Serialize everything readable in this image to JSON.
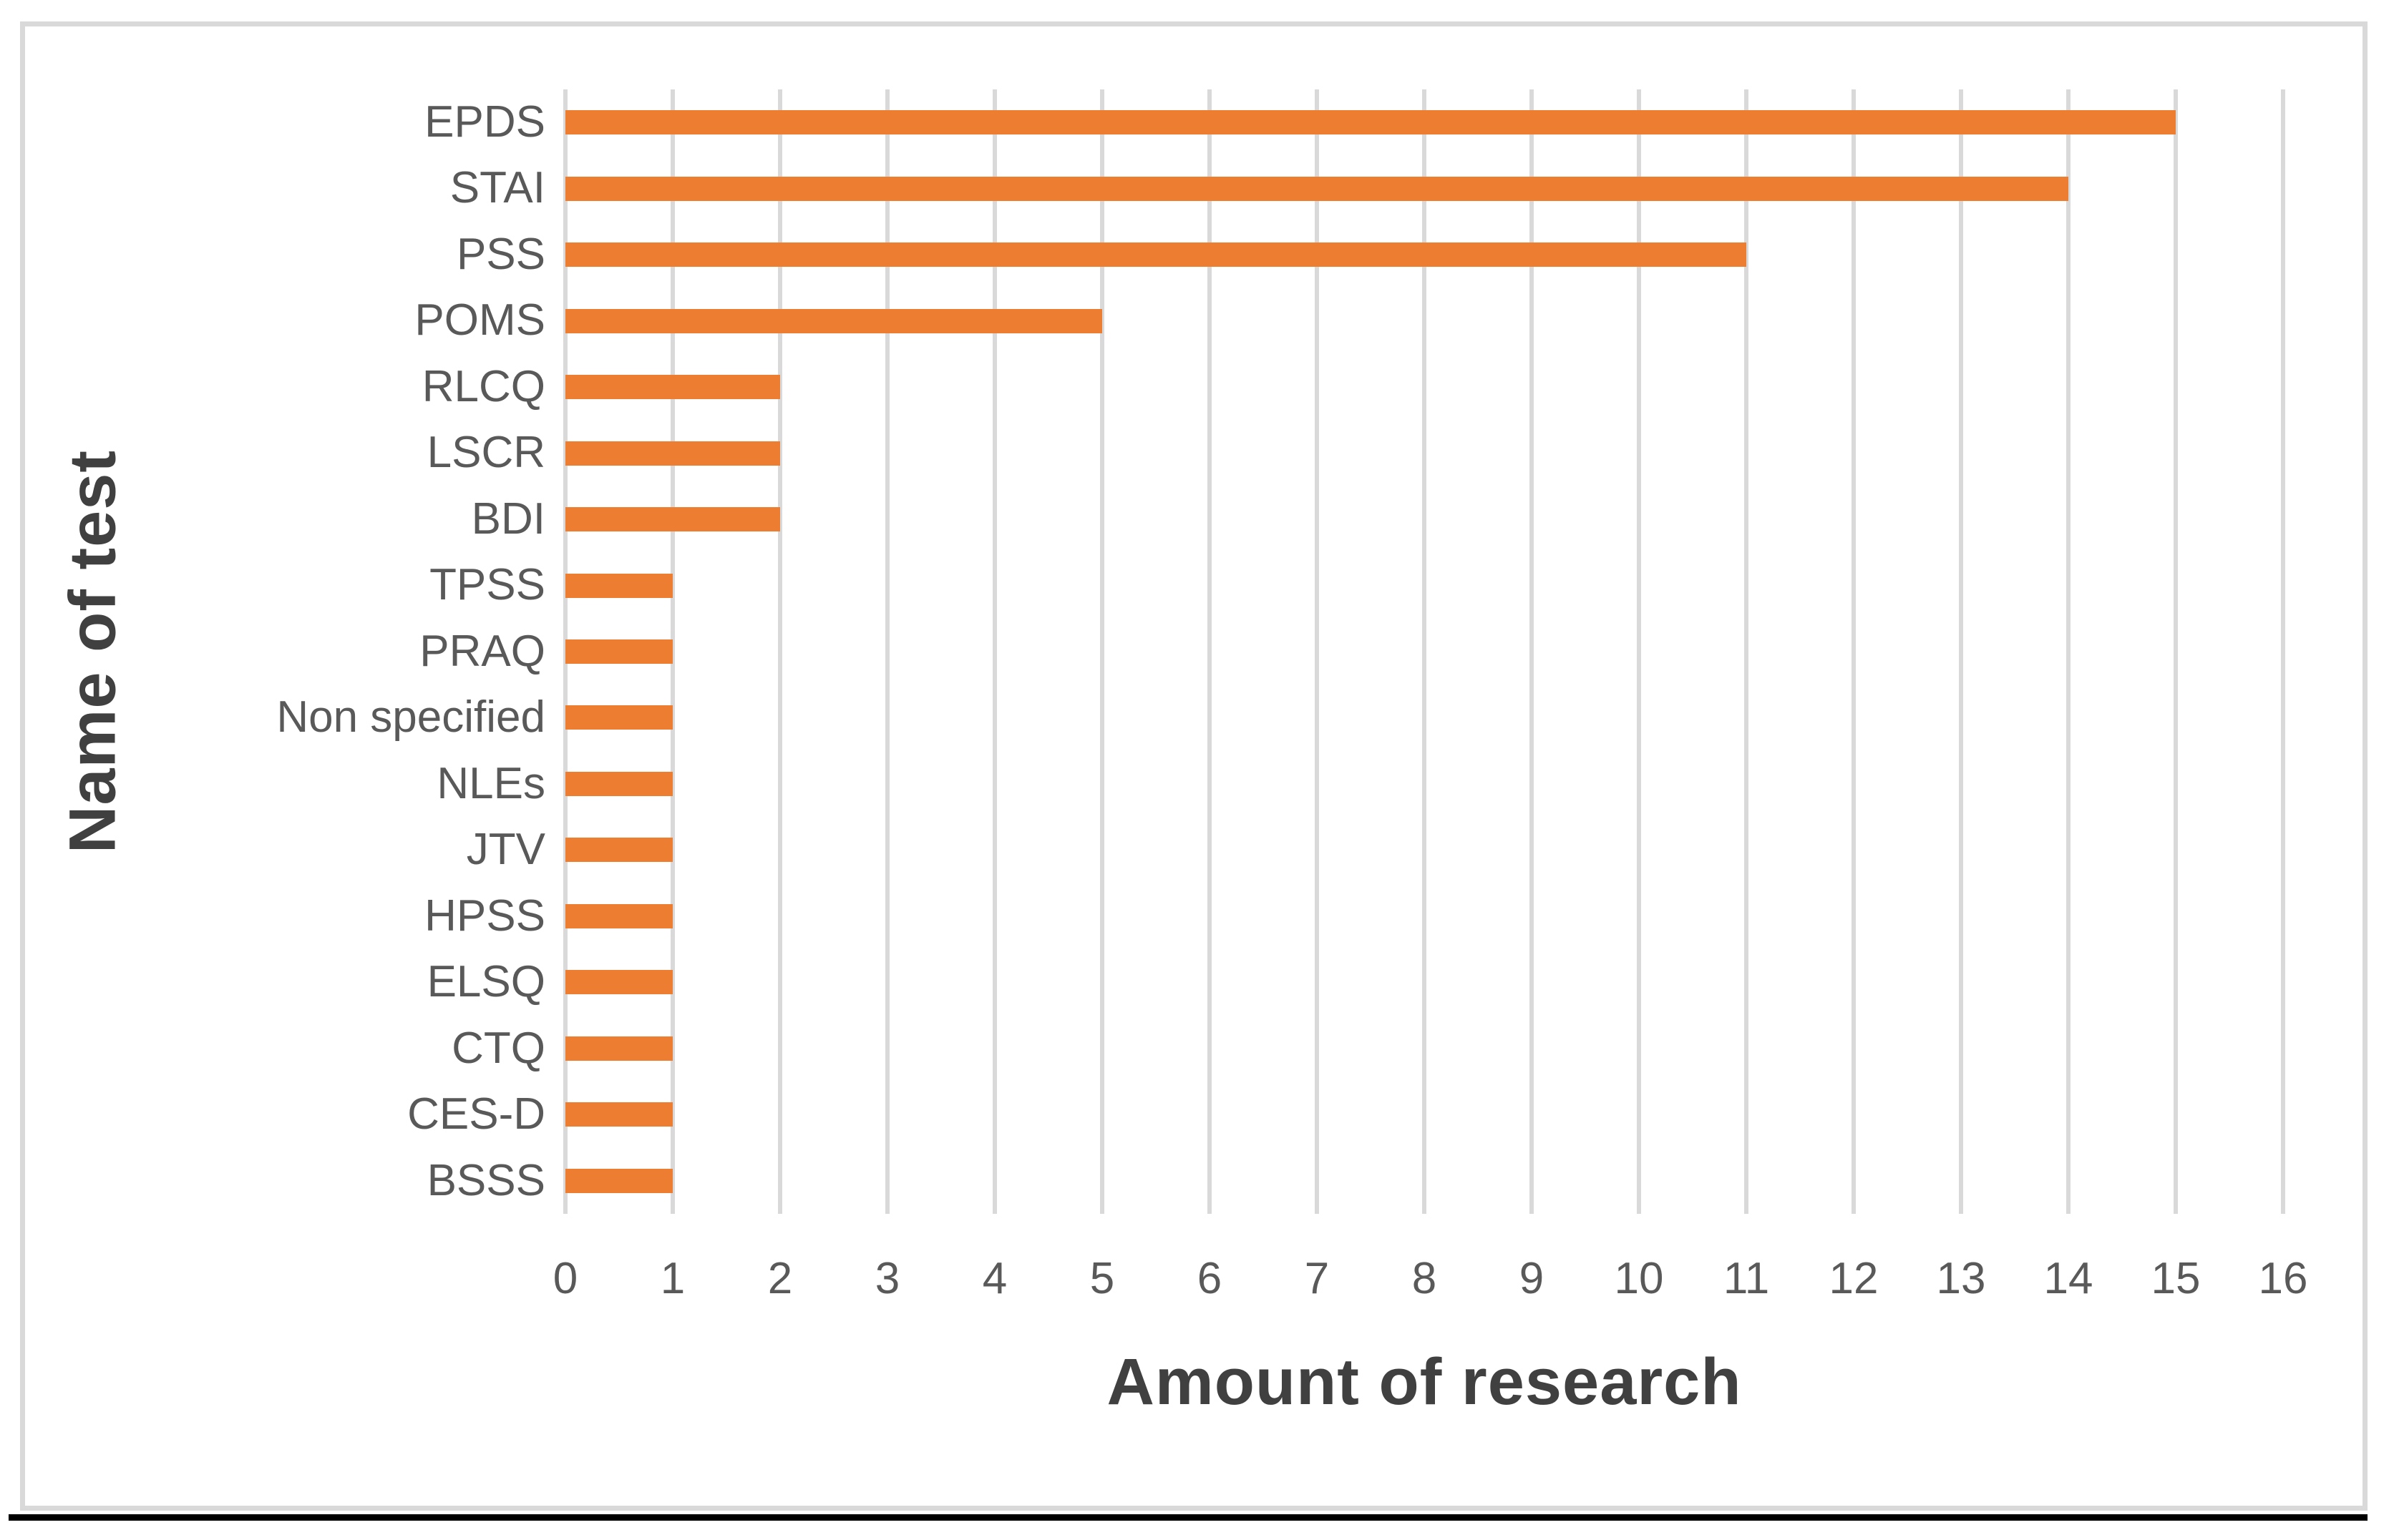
{
  "chart_data": {
    "type": "bar",
    "orientation": "horizontal",
    "title": "",
    "xlabel": "Amount of research",
    "ylabel": "Name of test",
    "categories": [
      "EPDS",
      "STAI",
      "PSS",
      "POMS",
      "RLCQ",
      "LSCR",
      "BDI",
      "TPSS",
      "PRAQ",
      "Non specified",
      "NLEs",
      "JTV",
      "HPSS",
      "ELSQ",
      "CTQ",
      "CES-D",
      "BSSS"
    ],
    "values": [
      15,
      14,
      11,
      5,
      2,
      2,
      2,
      1,
      1,
      1,
      1,
      1,
      1,
      1,
      1,
      1,
      1
    ],
    "xlim": [
      0,
      16
    ],
    "xtick_labels": [
      "0",
      "1",
      "2",
      "3",
      "4",
      "5",
      "6",
      "7",
      "8",
      "9",
      "10",
      "11",
      "12",
      "13",
      "14",
      "15",
      "16"
    ],
    "grid": true,
    "legend": false,
    "colors": {
      "bar": "#ed7d31",
      "gridline": "#d9d9d9",
      "frame_border": "#d9d9d9",
      "tick_label": "#595959",
      "category_label": "#595959",
      "axis_title": "#404040",
      "bottom_rule": "#000000"
    }
  }
}
